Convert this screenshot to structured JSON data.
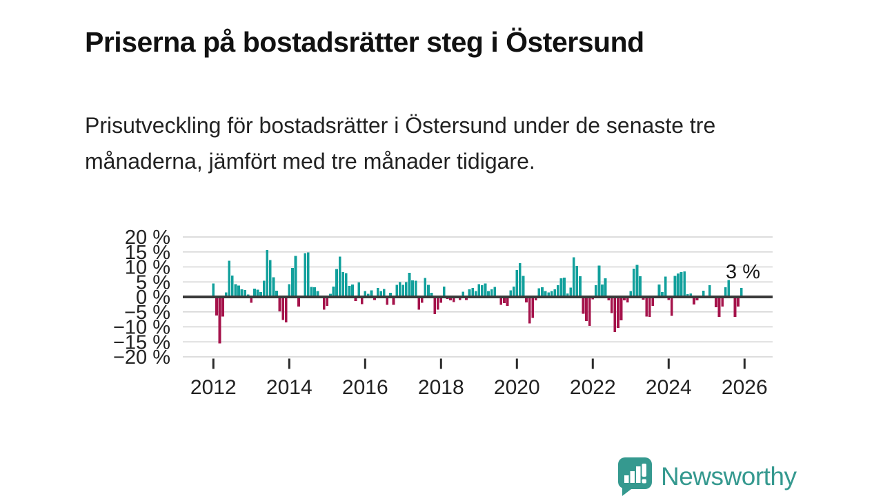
{
  "title": "Priserna på bostadsrätter steg i Östersund",
  "subtitle": "Prisutveckling för bostadsrätter i Östersund under de senaste tre månaderna, jämfört med tre månader tidigare.",
  "footer": {
    "brand": "Newsworthy",
    "logo_icon": "bar-chart-exclamation-speech-bubble-icon"
  },
  "colors": {
    "positive": "#12a09c",
    "negative": "#a5134b",
    "axis": "#3a3a3a",
    "grid": "#d2d2d2",
    "text": "#222222",
    "brand": "#35998f"
  },
  "chart_data": {
    "type": "bar",
    "title": "Priserna på bostadsrätter steg i Östersund",
    "unit": "%",
    "frequency": "monthly",
    "x_start": "2012-01",
    "x_end": "2025-12",
    "ylim": [
      -20,
      20
    ],
    "grid": true,
    "legend": "none",
    "yticks": [
      "20 %",
      "15 %",
      "10 %",
      "5 %",
      "0 %",
      "−5 %",
      "−10 %",
      "−15 %",
      "−20 %"
    ],
    "ytick_values": [
      20,
      15,
      10,
      5,
      0,
      -5,
      -10,
      -15,
      -20
    ],
    "xticks": [
      "2012",
      "2014",
      "2016",
      "2018",
      "2020",
      "2022",
      "2024",
      "2026"
    ],
    "xtick_years": [
      2012,
      2014,
      2016,
      2018,
      2020,
      2022,
      2024,
      2026
    ],
    "last_value_label": "3 %",
    "values": [
      4.5,
      -6.2,
      -15.5,
      -6.5,
      1.5,
      12.1,
      7.1,
      4.3,
      3.8,
      2.5,
      2.3,
      0.8,
      -2.0,
      2.8,
      2.4,
      1.6,
      5.4,
      15.6,
      12.3,
      6.6,
      2.1,
      -4.8,
      -7.7,
      -8.5,
      4.2,
      9.6,
      13.7,
      -3.2,
      0.5,
      14.6,
      14.8,
      3.3,
      3.2,
      1.9,
      0.5,
      -4.2,
      -3.0,
      1.0,
      3.5,
      9.3,
      13.5,
      8.3,
      7.9,
      3.7,
      4.1,
      -1.4,
      4.8,
      -2.4,
      1.9,
      1.0,
      2.2,
      -1.0,
      3.0,
      2.0,
      2.7,
      -2.7,
      1.4,
      -2.6,
      4.0,
      4.9,
      4.0,
      4.9,
      8.1,
      5.5,
      5.4,
      -4.3,
      -2.0,
      6.3,
      4.0,
      1.4,
      -5.8,
      -4.2,
      -2.0,
      3.5,
      -0.7,
      -1.2,
      -1.7,
      0.5,
      -1.0,
      1.7,
      -1.0,
      2.5,
      3.0,
      2.0,
      4.2,
      3.9,
      4.5,
      2.0,
      2.5,
      3.3,
      0.5,
      -2.6,
      -2.1,
      -3.0,
      2.2,
      3.5,
      9.0,
      11.3,
      7.0,
      -1.8,
      -8.8,
      -7.0,
      -1.2,
      2.9,
      3.2,
      1.9,
      1.5,
      2.0,
      2.5,
      3.9,
      6.2,
      6.4,
      1.1,
      3.1,
      13.2,
      10.3,
      6.9,
      -5.6,
      -8.1,
      -9.6,
      -0.8,
      3.9,
      10.5,
      4.1,
      6.2,
      -1.2,
      -5.4,
      -11.7,
      -10.3,
      -7.8,
      -1.2,
      -1.8,
      1.9,
      9.4,
      10.7,
      6.9,
      -0.9,
      -6.5,
      -6.7,
      -3.0,
      0.3,
      4.1,
      1.6,
      6.8,
      -1.0,
      -6.3,
      7.0,
      7.8,
      8.3,
      8.5,
      0.9,
      1.2,
      -2.5,
      -1.2,
      0.3,
      2.1,
      0.2,
      3.9,
      0.2,
      -3.5,
      -6.7,
      -3.2,
      3.2,
      5.6,
      0.2,
      -6.7,
      -3.2,
      3.0
    ]
  }
}
